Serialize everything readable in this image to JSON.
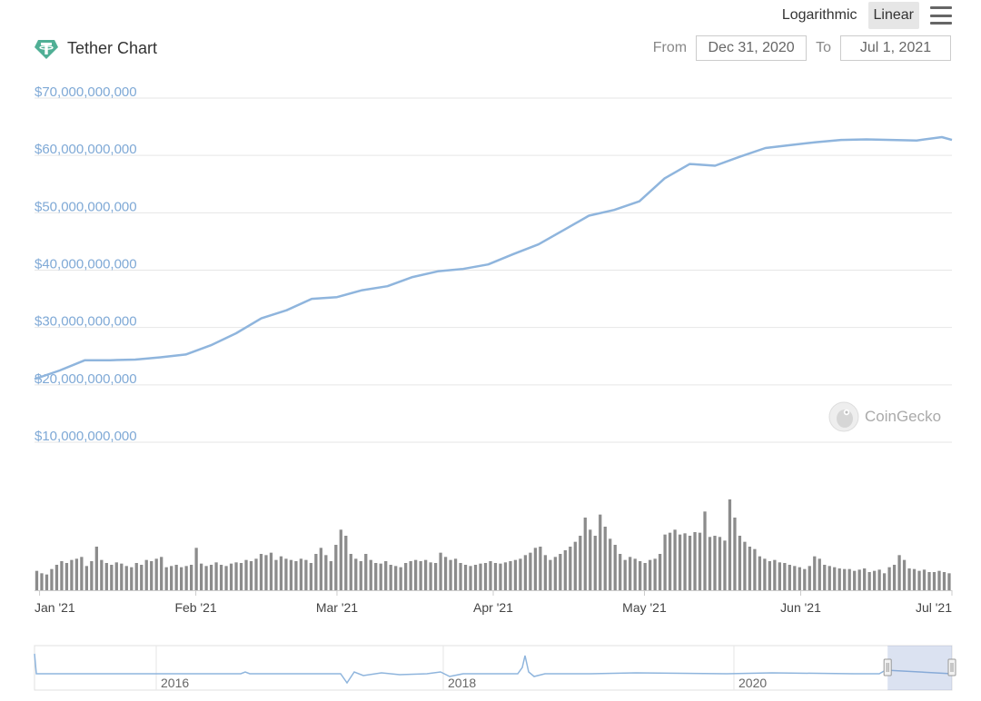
{
  "header": {
    "title": "Tether Chart",
    "logo_icon": "tether-logo-icon"
  },
  "toolbar": {
    "logarithmic_label": "Logarithmic",
    "linear_label": "Linear",
    "active_scale": "Linear"
  },
  "range": {
    "from_label": "From",
    "from_value": "Dec 31, 2020",
    "to_label": "To",
    "to_value": "Jul 1, 2021"
  },
  "credit": {
    "name": "CoinGecko"
  },
  "colors": {
    "line": "#8fb5dd",
    "grid": "#e6e6e6",
    "volume": "#8c8c8c",
    "navigator_fill": "rgba(110,140,200,0.25)"
  },
  "chart_data": {
    "type": "line",
    "title": "Tether Chart",
    "y_axis": {
      "ticks": [
        "$10,000,000,000",
        "$20,000,000,000",
        "$30,000,000,000",
        "$40,000,000,000",
        "$50,000,000,000",
        "$60,000,000,000",
        "$70,000,000,000"
      ],
      "ylim": [
        10000000000,
        70000000000
      ]
    },
    "x_axis": {
      "ticks": [
        "Jan '21",
        "Feb '21",
        "Mar '21",
        "Apr '21",
        "May '21",
        "Jun '21",
        "Jul '21"
      ],
      "tick_days": [
        1,
        32,
        60,
        91,
        121,
        152,
        182
      ]
    },
    "series": [
      {
        "x_days": [
          0,
          5,
          10,
          15,
          20,
          25,
          30,
          35,
          40,
          45,
          50,
          55,
          60,
          65,
          70,
          75,
          80,
          85,
          90,
          95,
          100,
          105,
          110,
          115,
          120,
          125,
          130,
          135,
          140,
          145,
          150,
          155,
          160,
          165,
          170,
          175,
          180,
          182
        ],
        "values": [
          21000000000,
          22500000000,
          24300000000,
          24300000000,
          24400000000,
          24800000000,
          25300000000,
          26900000000,
          29000000000,
          31600000000,
          33000000000,
          35000000000,
          35300000000,
          36500000000,
          37200000000,
          38800000000,
          39800000000,
          40200000000,
          41000000000,
          42800000000,
          44500000000,
          47000000000,
          49500000000,
          50500000000,
          52000000000,
          56000000000,
          58500000000,
          58200000000,
          59800000000,
          61300000000,
          61800000000,
          62300000000,
          62700000000,
          62800000000,
          62700000000,
          62600000000,
          63200000000,
          62700000000
        ]
      }
    ],
    "volume": {
      "values": [
        32,
        28,
        26,
        35,
        42,
        48,
        45,
        50,
        52,
        55,
        40,
        48,
        72,
        50,
        45,
        42,
        46,
        44,
        40,
        38,
        45,
        42,
        50,
        48,
        52,
        55,
        38,
        40,
        42,
        38,
        40,
        42,
        70,
        44,
        40,
        42,
        46,
        42,
        40,
        44,
        46,
        45,
        50,
        48,
        52,
        60,
        58,
        62,
        50,
        56,
        52,
        50,
        48,
        52,
        50,
        45,
        60,
        70,
        58,
        48,
        75,
        100,
        90,
        60,
        52,
        48,
        60,
        50,
        45,
        44,
        48,
        42,
        40,
        38,
        45,
        48,
        50,
        48,
        50,
        46,
        45,
        62,
        55,
        50,
        52,
        45,
        42,
        40,
        42,
        44,
        45,
        48,
        45,
        44,
        46,
        48,
        50,
        52,
        58,
        62,
        70,
        72,
        58,
        50,
        55,
        60,
        66,
        72,
        80,
        90,
        120,
        100,
        90,
        125,
        105,
        85,
        75,
        60,
        50,
        55,
        52,
        48,
        45,
        50,
        52,
        60,
        92,
        95,
        100,
        92,
        94,
        90,
        96,
        95,
        130,
        88,
        90,
        88,
        82,
        150,
        120,
        90,
        80,
        72,
        68,
        56,
        52,
        48,
        50,
        46,
        45,
        42,
        40,
        38,
        35,
        40,
        56,
        52,
        42,
        40,
        38,
        36,
        35,
        35,
        32,
        34,
        36,
        30,
        32,
        34,
        28,
        38,
        42,
        58,
        50,
        36,
        35,
        32,
        34,
        30,
        30,
        32,
        30,
        28
      ],
      "ymax": 150
    },
    "navigator": {
      "ticks": [
        "2016",
        "2018",
        "2020"
      ],
      "selection": [
        0.92,
        1.0
      ]
    }
  }
}
